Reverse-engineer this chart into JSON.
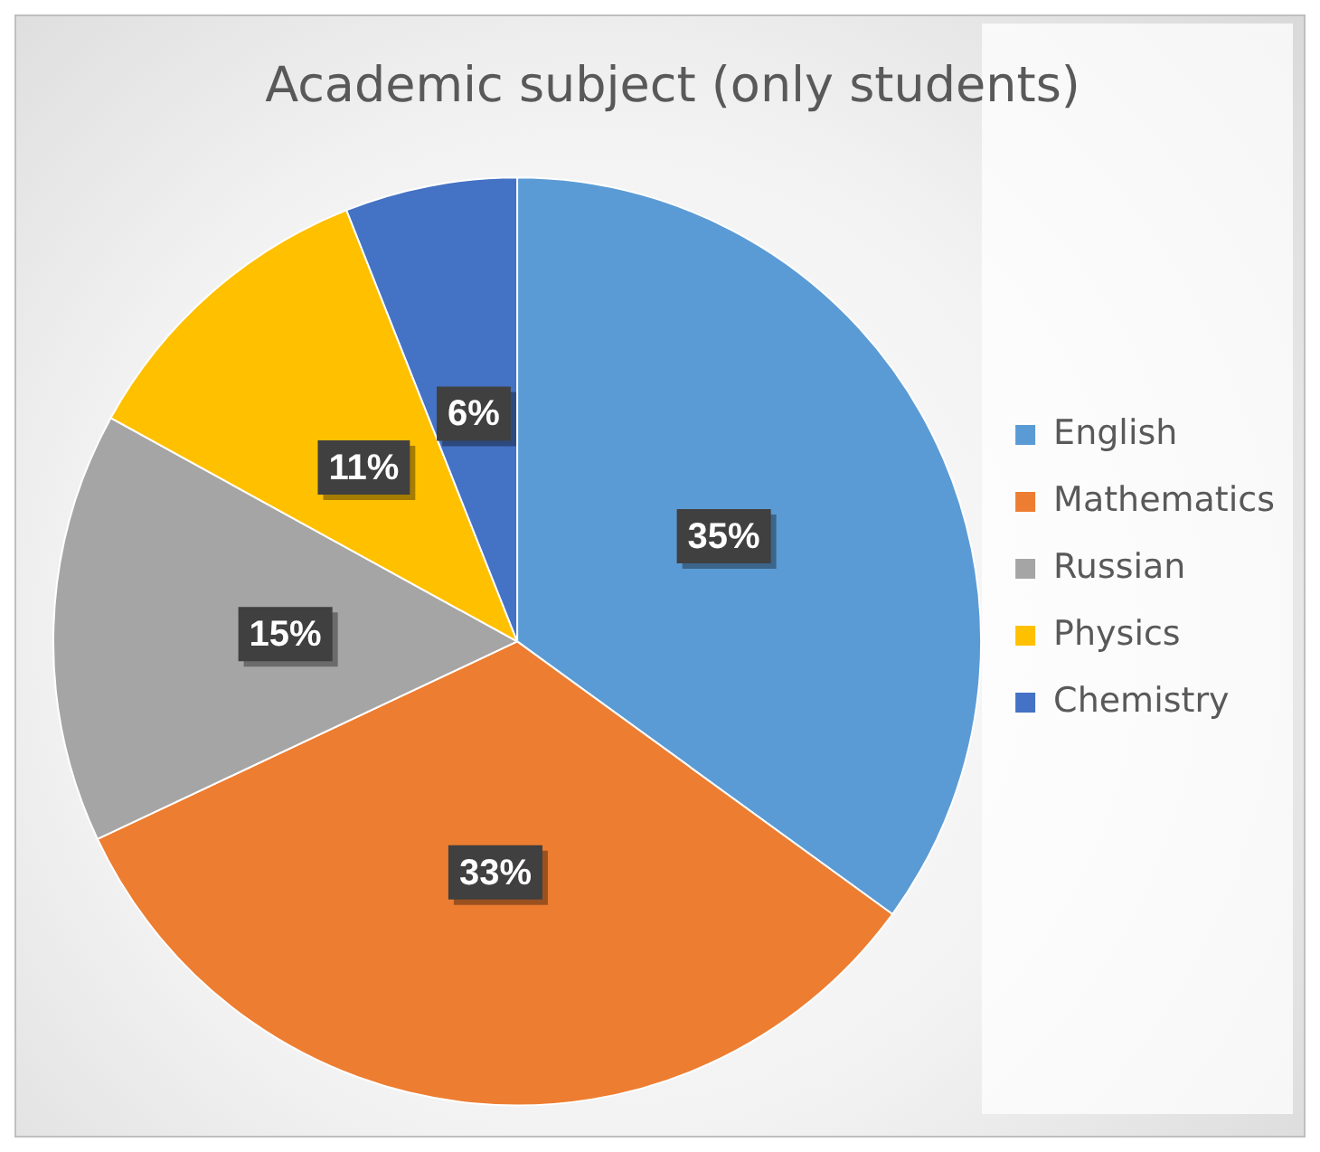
{
  "chart_data": {
    "type": "pie",
    "title": "Academic subject (only students)",
    "categories": [
      "English",
      "Mathematics",
      "Russian",
      "Physics",
      "Chemistry"
    ],
    "values": [
      35,
      33,
      15,
      11,
      6
    ],
    "value_labels": [
      "35%",
      "33%",
      "15%",
      "11%",
      "6%"
    ],
    "colors": [
      "#5b9bd5",
      "#ed7d31",
      "#a5a5a5",
      "#ffc000",
      "#4472c4"
    ],
    "legend": "right"
  }
}
